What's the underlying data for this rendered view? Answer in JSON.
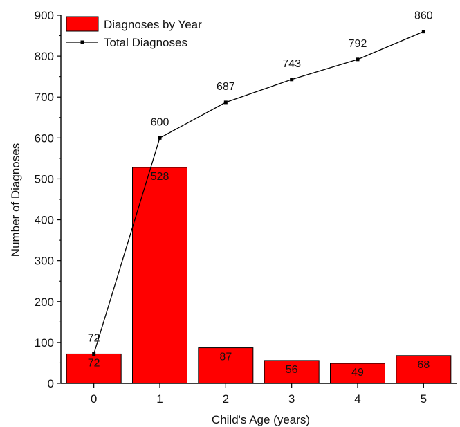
{
  "chart_data": {
    "type": "bar",
    "categories": [
      "0",
      "1",
      "2",
      "3",
      "4",
      "5"
    ],
    "series": [
      {
        "name": "Diagnoses by Year",
        "type": "bar",
        "values": [
          72,
          528,
          87,
          56,
          49,
          68
        ],
        "labels": [
          "72",
          "528",
          "87",
          "56",
          "49",
          "68"
        ],
        "color": "#ff0000",
        "border_color": "#000000"
      },
      {
        "name": "Total Diagnoses",
        "type": "line",
        "values": [
          72,
          600,
          687,
          743,
          792,
          860
        ],
        "labels": [
          "72",
          "600",
          "687",
          "743",
          "792",
          "860"
        ],
        "color": "#000000",
        "marker": "square"
      }
    ],
    "xlabel": "Child's Age (years)",
    "ylabel": "Number of Diagnoses",
    "ylim": [
      0,
      900
    ],
    "yticks": [
      "0",
      "100",
      "200",
      "300",
      "400",
      "500",
      "600",
      "700",
      "800",
      "900"
    ],
    "grid": false,
    "legend_position": "top-left"
  }
}
